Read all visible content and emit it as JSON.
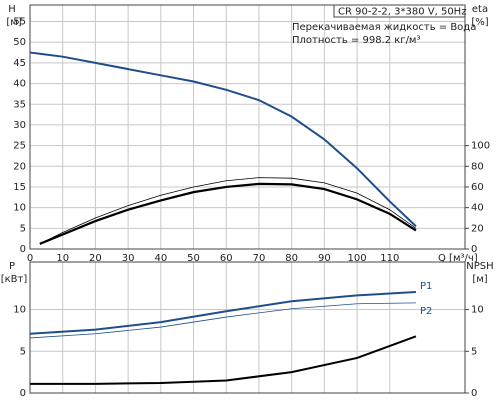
{
  "chart_data": [
    {
      "type": "line",
      "title": "CR 90-2-2, 3*380 V, 50Hz",
      "annotations": [
        "Перекачиваемая жидкость = Вода",
        "Плотность = 998.2 кг/м³"
      ],
      "y_label": "H",
      "y_unit": "[м]",
      "y2_label": "eta",
      "y2_unit": "[%]",
      "x_label": "Q [м³/ч]",
      "x": [
        0,
        3,
        10,
        20,
        30,
        40,
        50,
        60,
        70,
        80,
        90,
        100,
        110,
        118
      ],
      "xlim": [
        0,
        133
      ],
      "xticks": [
        0,
        10,
        20,
        30,
        40,
        50,
        60,
        70,
        80,
        90,
        100,
        110
      ],
      "ylim": [
        0,
        59
      ],
      "yticks": [
        0,
        5,
        10,
        15,
        20,
        25,
        30,
        35,
        40,
        45,
        50,
        55
      ],
      "y2lim": [
        0,
        236
      ],
      "y2ticks": [
        0,
        20,
        40,
        60,
        80,
        100
      ],
      "grid": true,
      "series": [
        {
          "color": "#1f4e8c",
          "width": 2,
          "values": [
            47.5,
            47.2,
            46.5,
            45,
            43.5,
            42,
            40.5,
            38.5,
            36,
            32,
            26.5,
            19.5,
            11.5,
            5.5
          ]
        },
        {
          "color": "#000000",
          "width": 2.2,
          "axis": "y2",
          "values": [
            null,
            5,
            14,
            27,
            38,
            47,
            55,
            60,
            63,
            62.5,
            58,
            48,
            34,
            18
          ]
        },
        {
          "color": "#000000",
          "width": 0.8,
          "axis": "y2",
          "values": [
            null,
            5,
            16,
            30,
            42,
            52,
            60,
            66,
            69,
            68.5,
            64,
            54,
            38,
            20
          ]
        }
      ]
    },
    {
      "type": "line",
      "y_label": "P",
      "y_unit": "[кВт]",
      "y2_label": "NPSH",
      "y2_unit": "[м]",
      "x": [
        0,
        20,
        40,
        60,
        80,
        100,
        118
      ],
      "xlim": [
        0,
        133
      ],
      "ylim": [
        0,
        15.7
      ],
      "yticks": [
        0,
        5,
        10
      ],
      "y2lim": [
        0,
        15.7
      ],
      "y2ticks": [
        0,
        5,
        10
      ],
      "grid": true,
      "series": [
        {
          "name": "P1",
          "color": "#1f4e8c",
          "width": 2,
          "values": [
            7.1,
            7.6,
            8.5,
            9.8,
            11,
            11.7,
            12.1
          ]
        },
        {
          "name": "P2",
          "color": "#1f4e8c",
          "width": 0.8,
          "values": [
            6.6,
            7.1,
            7.9,
            9.1,
            10.1,
            10.7,
            10.8
          ]
        },
        {
          "color": "#000000",
          "width": 2,
          "axis": "y2",
          "values": [
            1.1,
            1.1,
            1.2,
            1.5,
            2.5,
            4.2,
            6.8
          ]
        }
      ]
    }
  ]
}
